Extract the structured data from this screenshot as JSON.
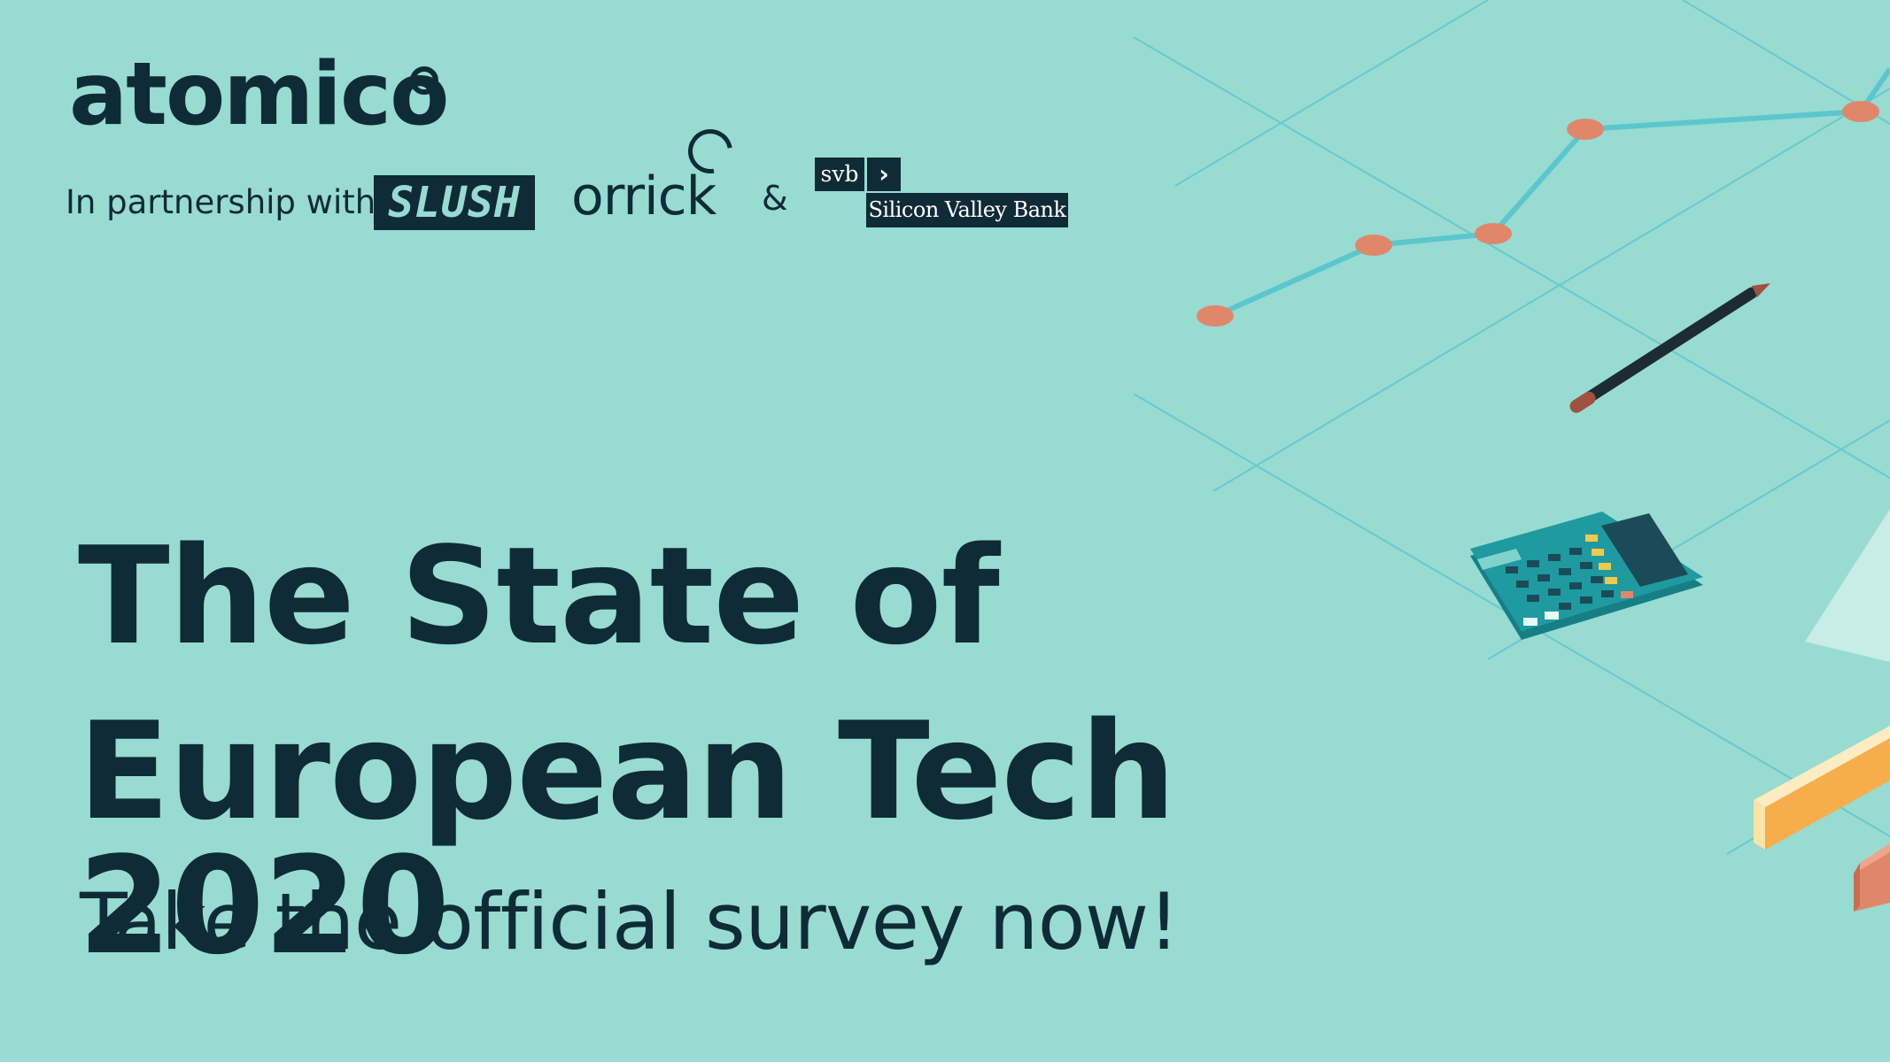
{
  "brand": {
    "logo_text": "atomico"
  },
  "partners": {
    "intro_text": "In partnership with",
    "slush_logo": "SLUSH",
    "orrick_logo": "orrick",
    "ampersand": "&",
    "svb_short": "svb",
    "svb_chevron": "›",
    "svb_full": "Silicon Valley Bank"
  },
  "headline": {
    "line1": "The State of",
    "line2": "European Tech 2020"
  },
  "cta": {
    "text": "Take the official survey now!"
  },
  "colors": {
    "background": "#98dbd1",
    "text": "#0f2b36",
    "accent_orange": "#e0876a",
    "grid_line": "#5cc6cf",
    "calculator": "#1f9aa0"
  },
  "icons": [
    "line-chart-icon",
    "pencil-icon",
    "calculator-icon",
    "bar-block-icon"
  ]
}
